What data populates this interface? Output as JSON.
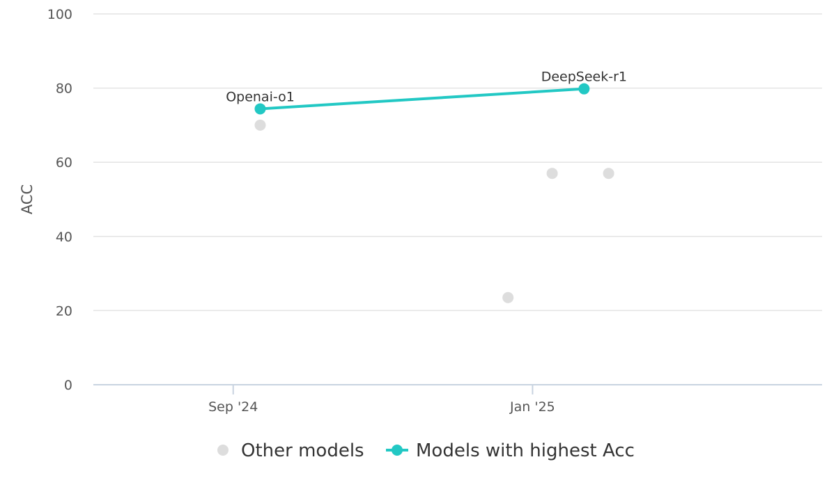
{
  "chart_data": {
    "type": "scatter",
    "title": "",
    "xlabel": "",
    "ylabel": "ACC",
    "ylim": [
      0,
      100
    ],
    "yticks": [
      0,
      20,
      40,
      60,
      80,
      100
    ],
    "xlim": [
      "2024-07-06",
      "2025-04-29"
    ],
    "xticks": [
      {
        "date": "2024-09-01",
        "label": "Sep '24"
      },
      {
        "date": "2025-01-01",
        "label": "Jan '25"
      }
    ],
    "grid": true,
    "legend_position": "bottom",
    "series": [
      {
        "name": "Other models",
        "type": "scatter",
        "color": "#dddddd",
        "points": [
          {
            "x": "2024-09-12",
            "y": 70
          },
          {
            "x": "2024-12-22",
            "y": 23.5
          },
          {
            "x": "2025-01-09",
            "y": 57
          },
          {
            "x": "2025-02-01",
            "y": 57
          }
        ]
      },
      {
        "name": "Models with highest Acc",
        "type": "line",
        "color": "#22c8c4",
        "points": [
          {
            "x": "2024-09-12",
            "y": 74.4,
            "label": "Openai-o1"
          },
          {
            "x": "2025-01-22",
            "y": 79.8,
            "label": "DeepSeek-r1"
          }
        ]
      }
    ]
  }
}
